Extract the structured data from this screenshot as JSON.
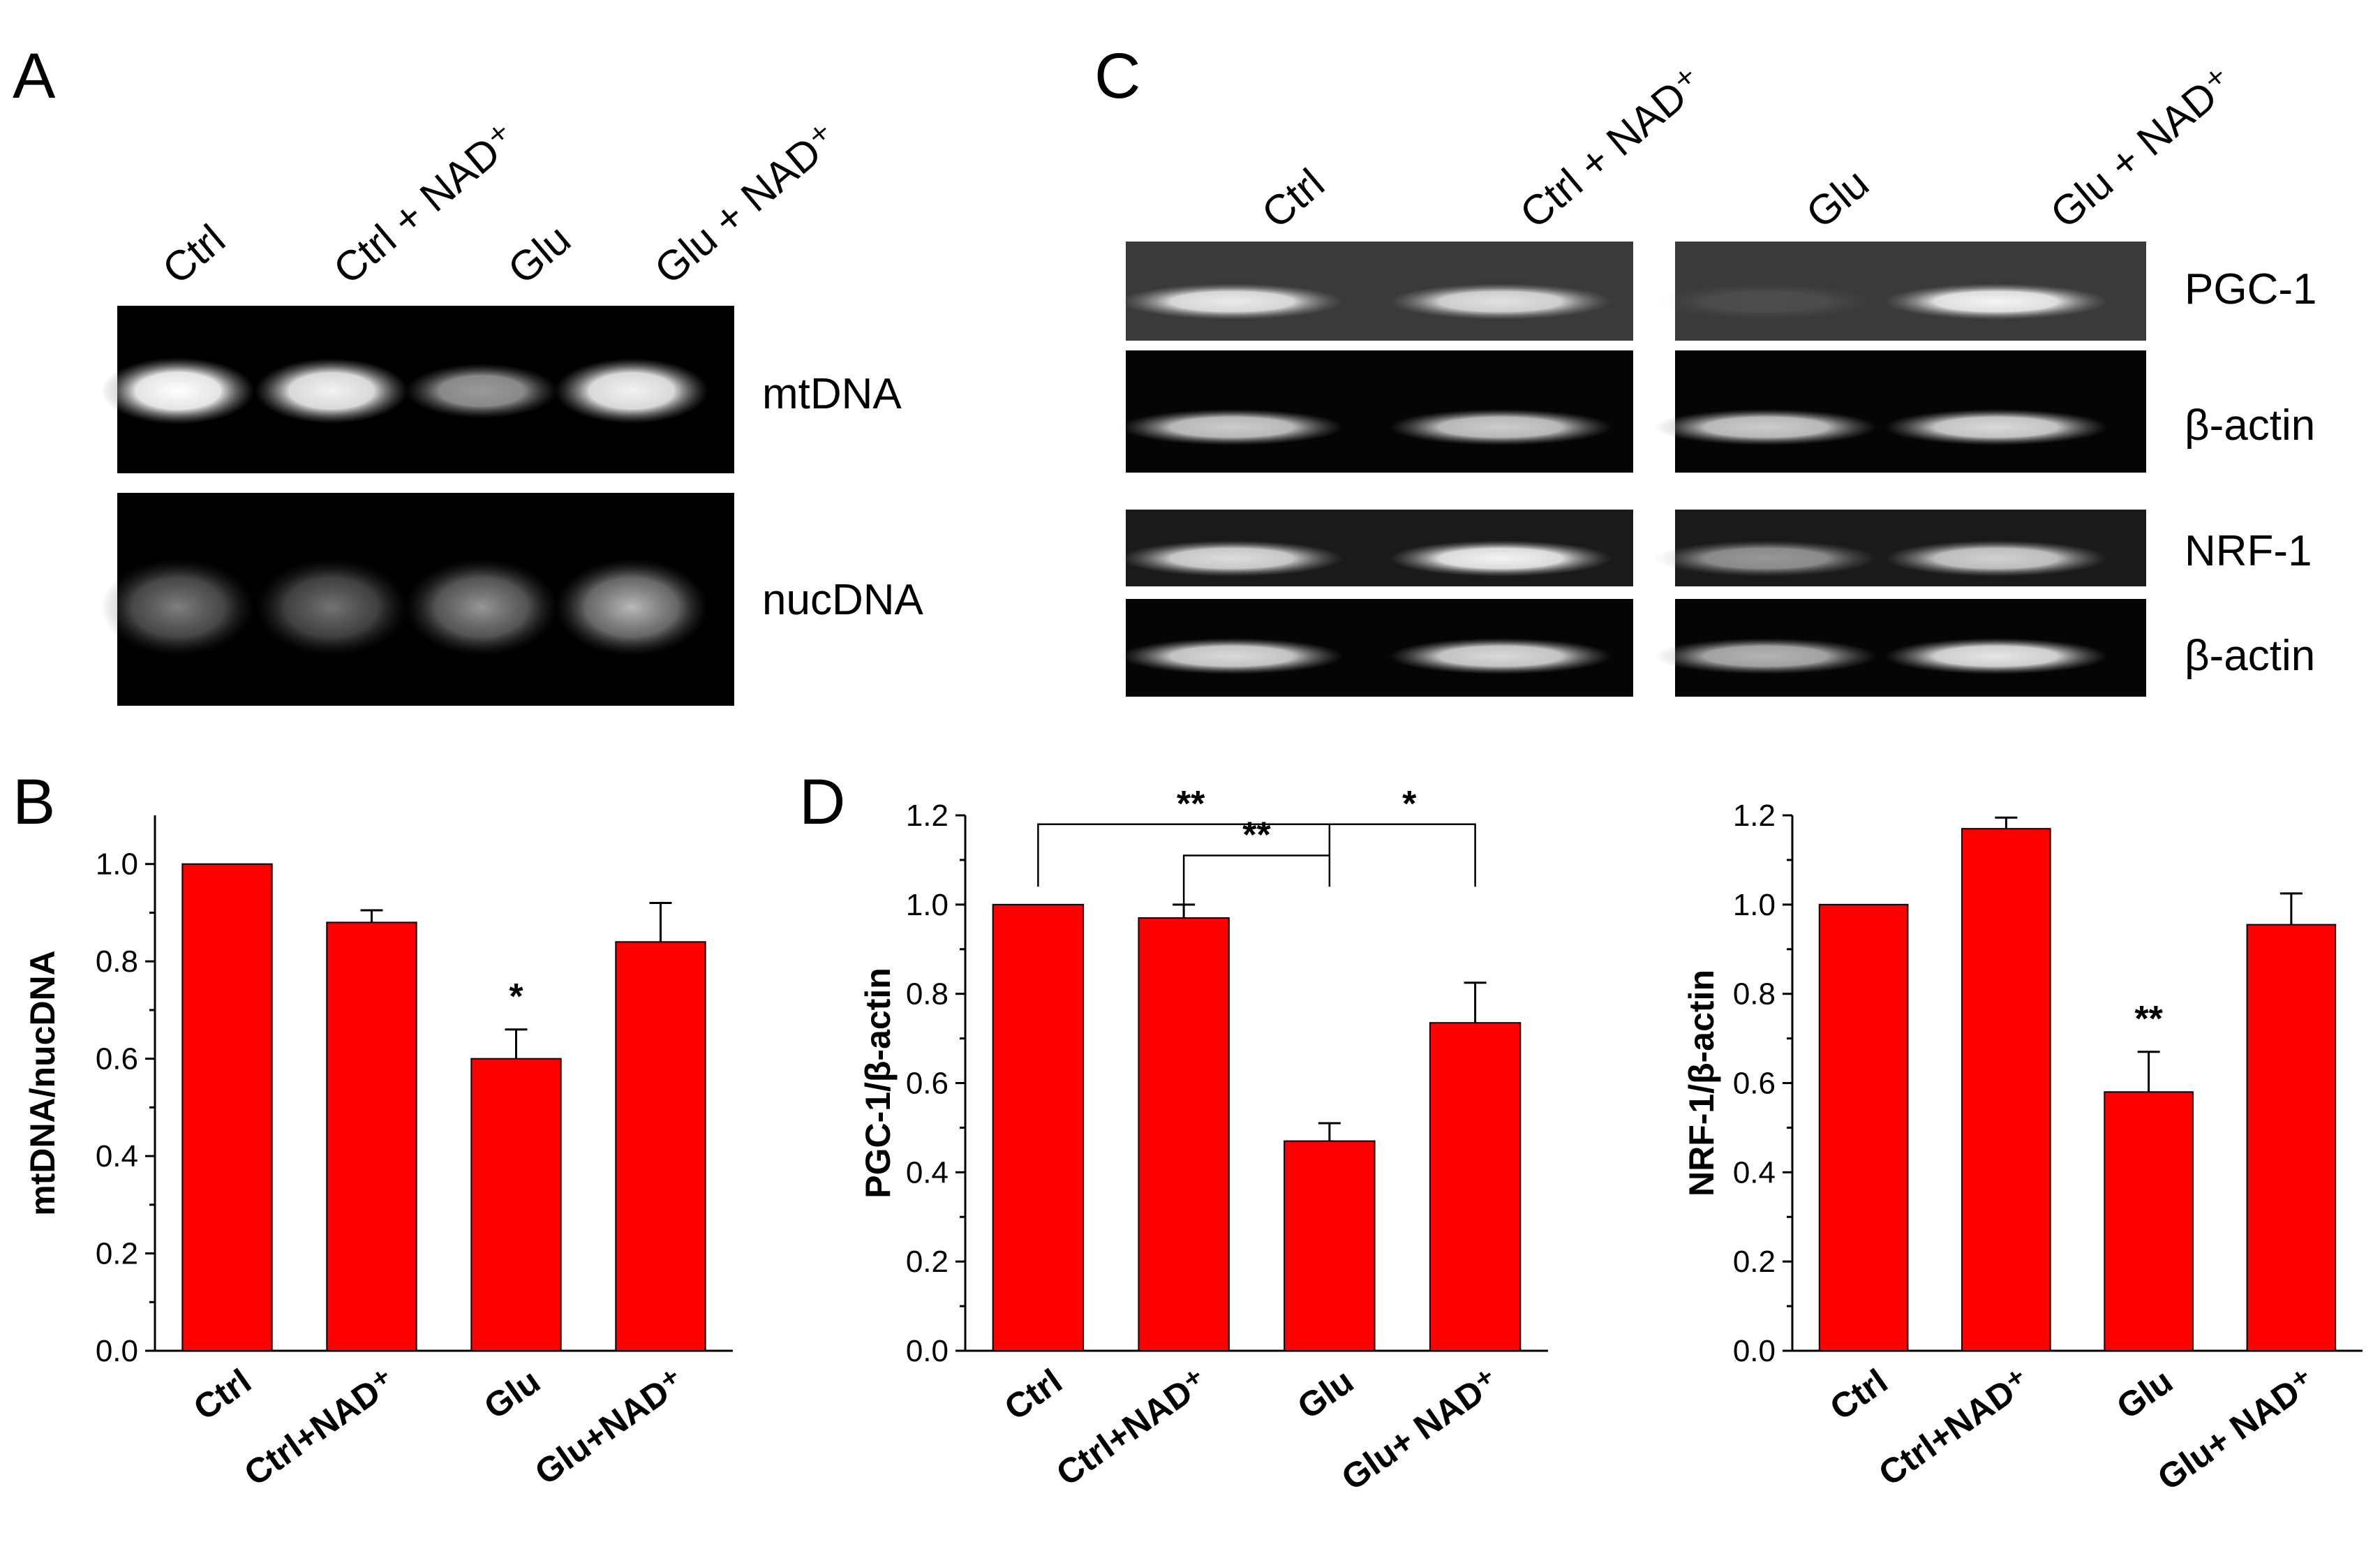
{
  "panels": {
    "A": {
      "letter": "A",
      "lanes": [
        "Ctrl",
        "Ctrl + NAD⁺",
        "Glu",
        "Glu + NAD⁺"
      ],
      "bands": [
        "mtDNA",
        "nucDNA"
      ],
      "mt_intensity": [
        1.0,
        0.95,
        0.6,
        0.95
      ],
      "nuc_intensity": [
        0.55,
        0.5,
        0.65,
        0.8
      ]
    },
    "C": {
      "letter": "C",
      "lanes": [
        "Ctrl",
        "Ctrl + NAD⁺",
        "Glu",
        "Glu + NAD⁺"
      ],
      "bands": [
        "PGC-1",
        "β-actin",
        "NRF-1",
        "β-actin"
      ]
    },
    "B": {
      "letter": "B"
    },
    "D": {
      "letter": "D"
    }
  },
  "chart_data": [
    {
      "id": "B",
      "type": "bar",
      "categories": [
        "Ctrl",
        "Ctrl+NAD⁺",
        "Glu",
        "Glu+NAD⁺"
      ],
      "values": [
        1.0,
        0.88,
        0.6,
        0.84
      ],
      "errors": [
        0.0,
        0.025,
        0.06,
        0.08
      ],
      "significance": [
        "",
        "",
        "*",
        ""
      ],
      "ylabel": "mtDNA/nucDNA",
      "ylim": [
        0,
        1.1
      ],
      "yticks": [
        "0.0",
        "0.2",
        "0.4",
        "0.6",
        "0.8",
        "1.0"
      ],
      "bar_color": "#ff0000"
    },
    {
      "id": "D1",
      "type": "bar",
      "categories": [
        "Ctrl",
        "Ctrl+NAD⁺",
        "Glu",
        "Glu+ NAD⁺"
      ],
      "values": [
        1.0,
        0.97,
        0.47,
        0.735
      ],
      "errors": [
        0.0,
        0.03,
        0.04,
        0.09
      ],
      "significance": [
        "",
        "",
        "",
        ""
      ],
      "brackets": [
        {
          "from": 0,
          "to": 2,
          "label": "**"
        },
        {
          "from": 1,
          "to": 2,
          "label": "**"
        },
        {
          "from": 2,
          "to": 3,
          "label": "*"
        }
      ],
      "ylabel": "PGC-1/β-actin",
      "ylim": [
        0,
        1.2
      ],
      "yticks": [
        "0.0",
        "0.2",
        "0.4",
        "0.6",
        "0.8",
        "1.0",
        "1.2"
      ],
      "bar_color": "#ff0000"
    },
    {
      "id": "D2",
      "type": "bar",
      "categories": [
        "Ctrl",
        "Ctrl+NAD⁺",
        "Glu",
        "Glu+ NAD⁺"
      ],
      "values": [
        1.0,
        1.17,
        0.58,
        0.955
      ],
      "errors": [
        0.0,
        0.025,
        0.09,
        0.07
      ],
      "significance": [
        "",
        "",
        "**",
        ""
      ],
      "ylabel": "NRF-1/β-actin",
      "ylim": [
        0,
        1.2
      ],
      "yticks": [
        "0.0",
        "0.2",
        "0.4",
        "0.6",
        "0.8",
        "1.0",
        "1.2"
      ],
      "bar_color": "#ff0000"
    }
  ]
}
